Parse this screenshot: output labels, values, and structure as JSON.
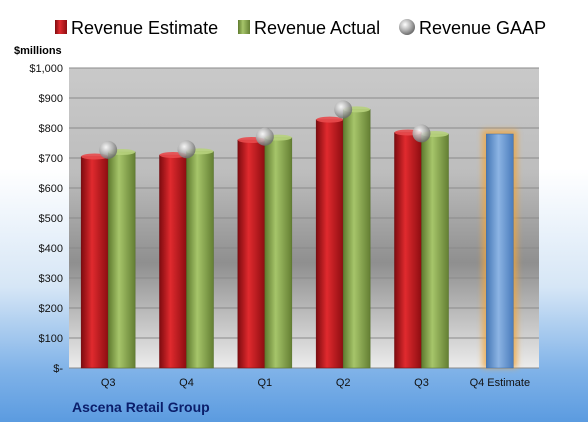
{
  "chart_data": {
    "type": "bar",
    "unit_label": "$millions",
    "company": "Ascena Retail Group",
    "categories": [
      "Q3",
      "Q4",
      "Q1",
      "Q2",
      "Q3",
      "Q4 Estimate"
    ],
    "y_ticks": [
      "$-",
      "$100",
      "$200",
      "$300",
      "$400",
      "$500",
      "$600",
      "$700",
      "$800",
      "$900",
      "$1,000"
    ],
    "ylim": [
      0,
      1000
    ],
    "legend_position": "top",
    "series": [
      {
        "name": "Revenue Estimate",
        "color": "#c0151b",
        "values": [
          705,
          710,
          760,
          828,
          785,
          null
        ]
      },
      {
        "name": "Revenue Actual",
        "color": "#8aad4e",
        "values": [
          720,
          722,
          768,
          862,
          780,
          null
        ]
      },
      {
        "name": "Revenue GAAP",
        "color": "#b9b9b9",
        "values": [
          727,
          729,
          771,
          862,
          782,
          null
        ]
      }
    ],
    "forecast": {
      "category_index": 5,
      "value": 780,
      "color": "#6a9bd6",
      "glow": "#f2a53b"
    },
    "grid": true
  }
}
